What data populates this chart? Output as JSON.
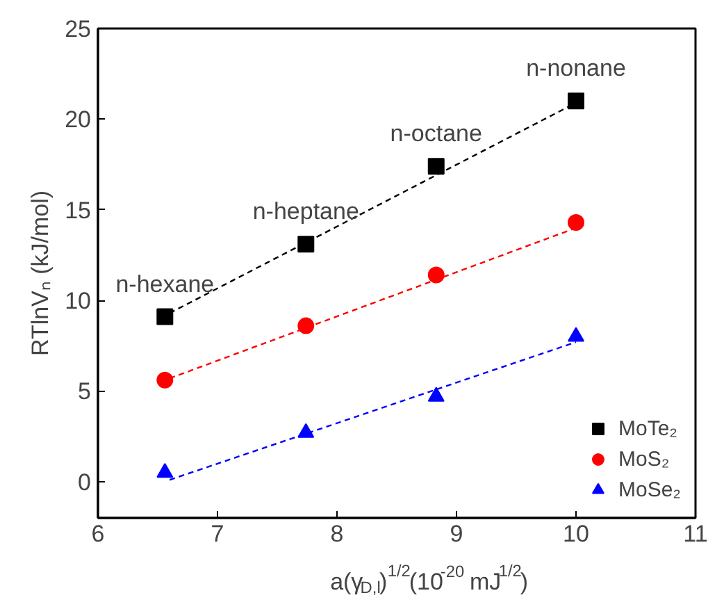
{
  "chart_data": {
    "type": "scatter",
    "xlabel": "a(γ$_{D,l}$)$^{1/2}$(10$^{-20}$ mJ$^{1/2}$)",
    "ylabel": "RTlnVₙ (kJ/mol)",
    "xlim": [
      6,
      11
    ],
    "ylim": [
      -2,
      25
    ],
    "xticks": [
      6,
      7,
      8,
      9,
      10,
      11
    ],
    "yticks": [
      0,
      5,
      10,
      15,
      20,
      25
    ],
    "grid": false,
    "legend": "bottom right",
    "series": [
      {
        "name": "MoTe₂",
        "color": "#000000",
        "marker": "square",
        "x": [
          6.56,
          7.74,
          8.83,
          10.0
        ],
        "values": [
          9.1,
          13.1,
          17.4,
          21.0
        ]
      },
      {
        "name": "MoS₂",
        "color": "#ff0000",
        "marker": "circle",
        "x": [
          6.56,
          7.74,
          8.83,
          10.0
        ],
        "values": [
          5.6,
          8.6,
          11.4,
          14.3
        ]
      },
      {
        "name": "MoSe₂",
        "color": "#0000ff",
        "marker": "triangle",
        "x": [
          6.56,
          7.74,
          8.83,
          10.0
        ],
        "values": [
          0.5,
          2.7,
          4.7,
          8.0
        ]
      },
      {
        "type": "line",
        "color": "#000000",
        "line_style": "dashed",
        "x": [
          6.6,
          10.0
        ],
        "values": [
          9.3,
          20.9
        ]
      },
      {
        "type": "line",
        "color": "#ff0000",
        "line_style": "dashed",
        "x": [
          6.6,
          10.0
        ],
        "values": [
          5.7,
          14.0
        ]
      },
      {
        "type": "line",
        "color": "#0000ff",
        "line_style": "dashed",
        "x": [
          6.6,
          10.0
        ],
        "values": [
          0.1,
          7.7
        ]
      }
    ],
    "annotations": [
      {
        "text": "n-hexane",
        "x": 6.56,
        "y": 9.1
      },
      {
        "text": "n-heptane",
        "x": 7.74,
        "y": 13.1
      },
      {
        "text": "n-octane",
        "x": 8.83,
        "y": 17.4
      },
      {
        "text": "n-nonane",
        "x": 10.0,
        "y": 21.0
      }
    ]
  }
}
